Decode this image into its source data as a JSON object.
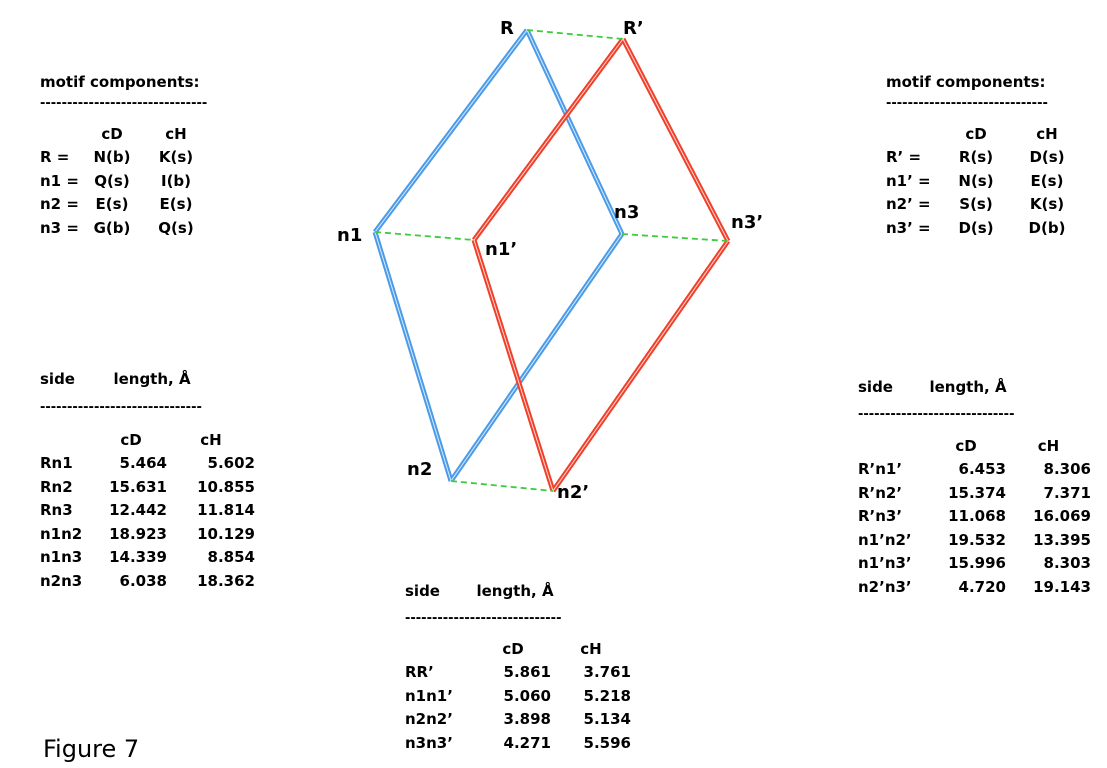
{
  "diagram": {
    "nodes": {
      "R": "R",
      "n1": "n1",
      "n2": "n2",
      "n3": "n3",
      "Rp": "R’",
      "n1p": "n1’",
      "n2p": "n2’",
      "n3p": "n3’"
    },
    "colors": {
      "unprimed": "#4a9be8",
      "primed": "#f0402a",
      "link": "#3dcc3d"
    }
  },
  "left_motif": {
    "title": "motif components:",
    "divider": "-------------------------------",
    "headers": [
      "",
      "cD",
      "cH"
    ],
    "rows": [
      [
        "R =",
        "N(b)",
        "K(s)"
      ],
      [
        "n1 =",
        "Q(s)",
        "I(b)"
      ],
      [
        "n2 =",
        "E(s)",
        "E(s)"
      ],
      [
        "n3 =",
        "G(b)",
        "Q(s)"
      ]
    ]
  },
  "right_motif": {
    "title": "motif components:",
    "divider": "------------------------------",
    "headers": [
      "",
      "cD",
      "cH"
    ],
    "rows": [
      [
        "R’ =",
        "R(s)",
        "D(s)"
      ],
      [
        "n1’ =",
        "N(s)",
        "E(s)"
      ],
      [
        "n2’ =",
        "S(s)",
        "K(s)"
      ],
      [
        "n3’ =",
        "D(s)",
        "D(b)"
      ]
    ]
  },
  "left_lengths": {
    "col1": "side",
    "col2": "length, Å",
    "divider": "------------------------------",
    "headers": [
      "",
      "cD",
      "cH"
    ],
    "rows": [
      [
        "Rn1",
        "5.464",
        "5.602"
      ],
      [
        "Rn2",
        "15.631",
        "10.855"
      ],
      [
        "Rn3",
        "12.442",
        "11.814"
      ],
      [
        "n1n2",
        "18.923",
        "10.129"
      ],
      [
        "n1n3",
        "14.339",
        "8.854"
      ],
      [
        "n2n3",
        "6.038",
        "18.362"
      ]
    ]
  },
  "right_lengths": {
    "col1": "side",
    "col2": "length, Å",
    "divider": "-----------------------------",
    "headers": [
      "",
      "cD",
      "cH"
    ],
    "rows": [
      [
        "R’n1’",
        "6.453",
        "8.306"
      ],
      [
        "R’n2’",
        "15.374",
        "7.371"
      ],
      [
        "R’n3’",
        "11.068",
        "16.069"
      ],
      [
        "n1’n2’",
        "19.532",
        "13.395"
      ],
      [
        "n1’n3’",
        "15.996",
        "8.303"
      ],
      [
        "n2’n3’",
        "4.720",
        "19.143"
      ]
    ]
  },
  "bottom_lengths": {
    "col1": "side",
    "col2": "length, Å",
    "divider": "-----------------------------",
    "headers": [
      "",
      "cD",
      "cH"
    ],
    "rows": [
      [
        "RR’",
        "5.861",
        "3.761"
      ],
      [
        "n1n1’",
        "5.060",
        "5.218"
      ],
      [
        "n2n2’",
        "3.898",
        "5.134"
      ],
      [
        "n3n3’",
        "4.271",
        "5.596"
      ]
    ]
  },
  "figure_label": "Figure 7"
}
